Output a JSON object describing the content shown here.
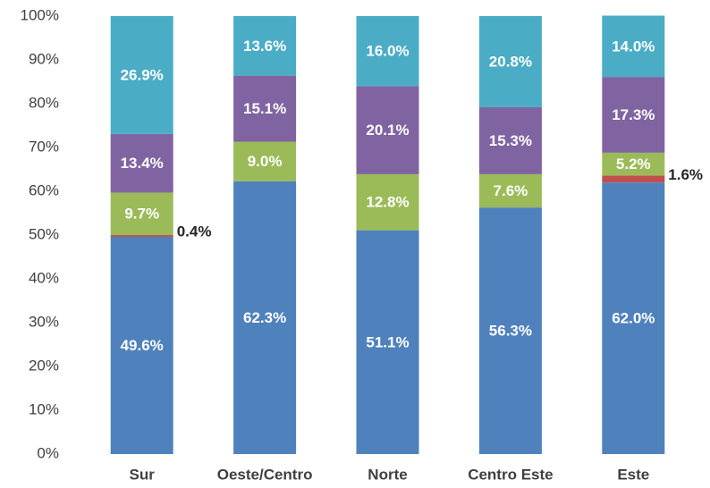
{
  "chart_data": {
    "type": "stacked_bar",
    "categories": [
      "Sur",
      "Oeste/Centro",
      "Norte",
      "Centro Este",
      "Este"
    ],
    "series": [
      {
        "color": "#4f81bd",
        "values": [
          49.6,
          62.3,
          51.1,
          56.3,
          62.0
        ],
        "value_labels": [
          "49.6%",
          "62.3%",
          "51.1%",
          "56.3%",
          "62.0%"
        ]
      },
      {
        "color": "#c0504d",
        "values": [
          0.4,
          null,
          null,
          null,
          1.6
        ],
        "value_labels": [
          "0.4%",
          null,
          null,
          null,
          "1.6%"
        ]
      },
      {
        "color": "#9bbb59",
        "values": [
          9.7,
          9.0,
          12.8,
          7.6,
          5.2
        ],
        "value_labels": [
          "9.7%",
          "9.0%",
          "12.8%",
          "7.6%",
          "5.2%"
        ]
      },
      {
        "color": "#8064a2",
        "values": [
          13.4,
          15.1,
          20.1,
          15.3,
          17.3
        ],
        "value_labels": [
          "13.4%",
          "15.1%",
          "20.1%",
          "15.3%",
          "17.3%"
        ]
      },
      {
        "color": "#4bacc6",
        "values": [
          26.9,
          13.6,
          16.0,
          20.8,
          14.0
        ],
        "value_labels": [
          "26.9%",
          "13.6%",
          "16.0%",
          "20.8%",
          "14.0%"
        ]
      }
    ],
    "ylim": [
      0,
      100
    ],
    "yticks": [
      {
        "value": 0,
        "label": "0%"
      },
      {
        "value": 10,
        "label": "10%"
      },
      {
        "value": 20,
        "label": "20%"
      },
      {
        "value": 30,
        "label": "30%"
      },
      {
        "value": 40,
        "label": "40%"
      },
      {
        "value": 50,
        "label": "50%"
      },
      {
        "value": 60,
        "label": "60%"
      },
      {
        "value": 70,
        "label": "70%"
      },
      {
        "value": 80,
        "label": "80%"
      },
      {
        "value": 90,
        "label": "90%"
      },
      {
        "value": 100,
        "label": "100%"
      }
    ],
    "grid": false
  }
}
